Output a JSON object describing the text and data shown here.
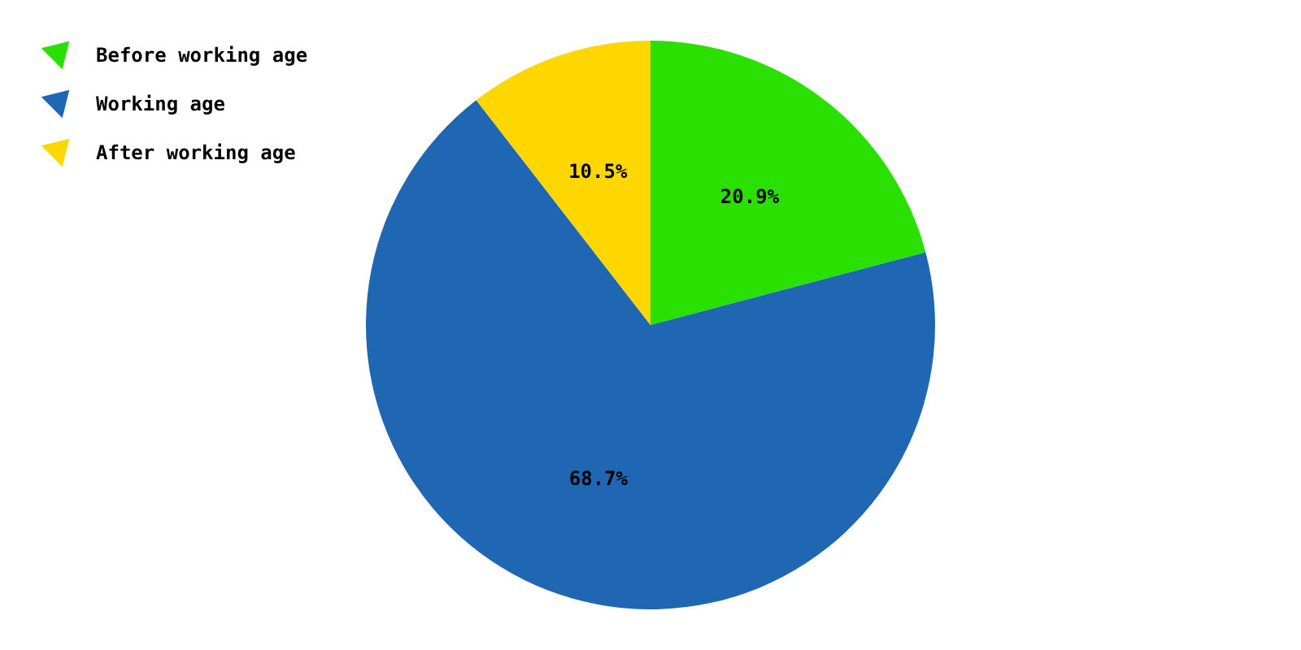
{
  "chart_data": {
    "type": "pie",
    "categories": [
      "Before working age",
      "Working age",
      "After working age"
    ],
    "values": [
      20.9,
      68.7,
      10.5
    ],
    "colors": [
      "#2ae000",
      "#1f66b3",
      "#ffd700"
    ],
    "value_labels": [
      "20.9%",
      "68.7%",
      "10.5%"
    ],
    "legend": "top left"
  }
}
